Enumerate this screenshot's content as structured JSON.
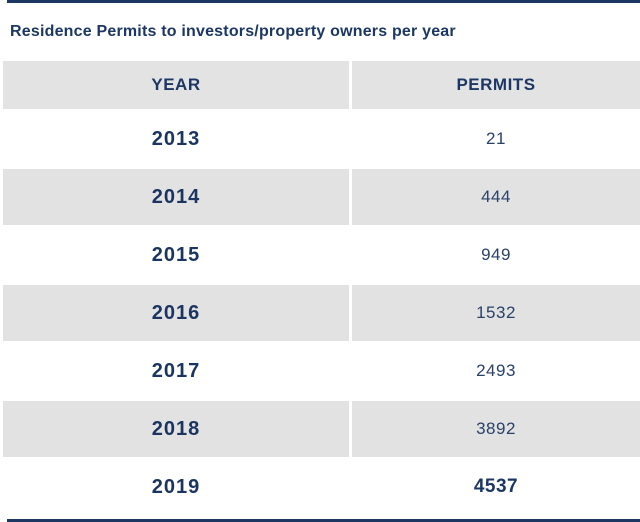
{
  "title": "Residence Permits to investors/property owners per year",
  "table": {
    "columns": [
      "YEAR",
      "PERMITS"
    ],
    "rows": [
      {
        "year": "2013",
        "permits": "21"
      },
      {
        "year": "2014",
        "permits": "444"
      },
      {
        "year": "2015",
        "permits": "949"
      },
      {
        "year": "2016",
        "permits": "1532"
      },
      {
        "year": "2017",
        "permits": "2493"
      },
      {
        "year": "2018",
        "permits": "3892"
      },
      {
        "year": "2019",
        "permits": "4537",
        "emphasis": true
      }
    ]
  },
  "colors": {
    "accent_navy": "#1c3862",
    "text_navy": "#1d3764",
    "row_stripe_gray": "#e2e2e3",
    "divider_white": "#ffffff"
  },
  "chart_data": {
    "type": "table",
    "title": "Residence Permits to investors/property owners per year",
    "columns": [
      "YEAR",
      "PERMITS"
    ],
    "categories": [
      "2013",
      "2014",
      "2015",
      "2016",
      "2017",
      "2018",
      "2019"
    ],
    "values": [
      21,
      444,
      949,
      1532,
      2493,
      3892,
      4537
    ]
  }
}
